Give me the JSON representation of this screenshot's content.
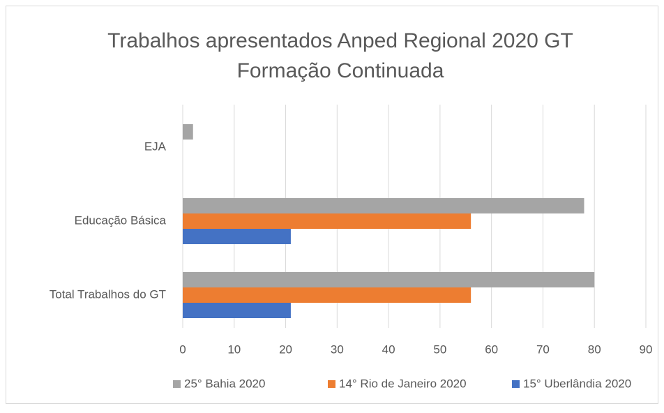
{
  "chart_data": {
    "type": "hbar",
    "title": [
      "Trabalhos apresentados Anped Regional 2020 GT",
      "Formação Continuada"
    ],
    "categories": [
      "EJA",
      "Educação Básica",
      "Total Trabalhos do GT"
    ],
    "series": [
      {
        "name": "25° Bahia 2020",
        "color": "#a5a5a5",
        "values": [
          2,
          78,
          80
        ]
      },
      {
        "name": "14° Rio de Janeiro 2020",
        "color": "#ed7d31",
        "values": [
          0,
          56,
          56
        ]
      },
      {
        "name": "15° Uberlândia 2020",
        "color": "#4472c4",
        "values": [
          0,
          21,
          21
        ]
      }
    ],
    "xlim": [
      0,
      90
    ],
    "xticks": [
      0,
      10,
      20,
      30,
      40,
      50,
      60,
      70,
      80,
      90
    ],
    "grid": true,
    "legend": "bottom"
  }
}
